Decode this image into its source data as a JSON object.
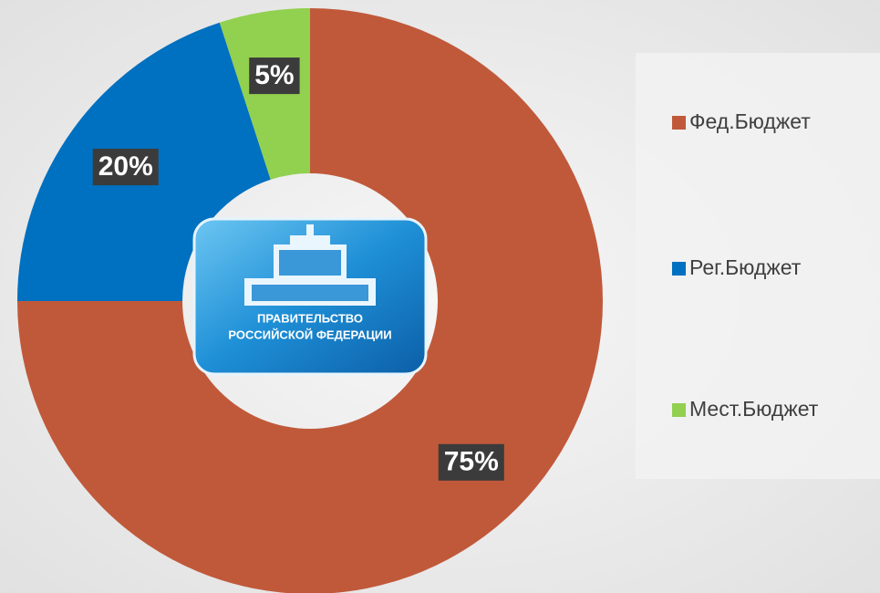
{
  "chart_data": {
    "type": "donut",
    "categories": [
      "Фед.Бюджет",
      "Рег.Бюджет",
      "Мест.Бюджет"
    ],
    "values": [
      75,
      20,
      5
    ],
    "value_labels": [
      "75%",
      "20%",
      "5%"
    ],
    "colors": [
      "#c0593a",
      "#0070c0",
      "#92d050"
    ],
    "legend": "right",
    "center_text": [
      "ПРАВИТЕЛЬСТВО",
      "РОССИЙСКОЙ ФЕДЕРАЦИИ"
    ]
  }
}
